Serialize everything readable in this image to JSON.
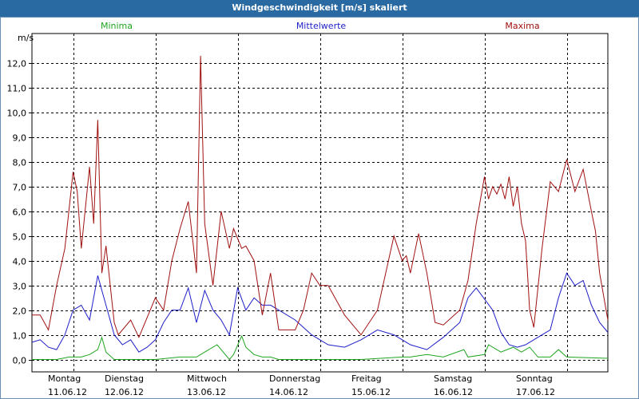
{
  "window": {
    "title": "Windgeschwindigkeit [m/s] skaliert"
  },
  "chart_data": {
    "type": "line",
    "title": "Windgeschwindigkeit [m/s] skaliert",
    "ylabel": "m/s",
    "xlabel": "",
    "ylim": [
      -0.5,
      13.2
    ],
    "yticks": [
      0,
      1,
      2,
      3,
      4,
      5,
      6,
      7,
      8,
      9,
      10,
      11,
      12
    ],
    "ytick_labels": [
      "0,0",
      "1,0",
      "2,0",
      "3,0",
      "4,0",
      "5,0",
      "6,0",
      "7,0",
      "8,0",
      "9,0",
      "10,0",
      "11,0",
      "12,0"
    ],
    "grid": true,
    "xlim": [
      0,
      7
    ],
    "days": [
      {
        "weekday": "Montag",
        "date": "11.06.12"
      },
      {
        "weekday": "Dienstag",
        "date": "12.06.12"
      },
      {
        "weekday": "Mittwoch",
        "date": "13.06.12"
      },
      {
        "weekday": "Donnerstag",
        "date": "14.06.12"
      },
      {
        "weekday": "Freitag",
        "date": "15.06.12"
      },
      {
        "weekday": "Samstag",
        "date": "16.06.12"
      },
      {
        "weekday": "Sonntag",
        "date": "17.06.12"
      }
    ],
    "series": [
      {
        "name": "Minima",
        "color": "#1fa51f",
        "x": [
          0,
          0.3,
          0.45,
          0.6,
          0.7,
          0.8,
          0.85,
          0.9,
          1.0,
          1.5,
          1.8,
          2.0,
          2.1,
          2.25,
          2.4,
          2.45,
          2.55,
          2.6,
          2.7,
          2.8,
          2.9,
          3.0,
          3.5,
          4.0,
          4.5,
          4.6,
          4.8,
          5.0,
          5.25,
          5.3,
          5.5,
          5.55,
          5.7,
          5.85,
          5.95,
          6.05,
          6.15,
          6.3,
          6.4,
          6.5,
          7.0
        ],
        "values": [
          0,
          0,
          0.1,
          0.1,
          0.2,
          0.4,
          0.9,
          0.3,
          0,
          0,
          0.1,
          0.1,
          0.3,
          0.6,
          0,
          0.2,
          0.95,
          0.5,
          0.2,
          0.1,
          0.1,
          0,
          0,
          0,
          0.1,
          0.1,
          0.2,
          0.1,
          0.4,
          0.1,
          0.2,
          0.6,
          0.3,
          0.5,
          0.3,
          0.5,
          0.1,
          0.1,
          0.4,
          0.1,
          0.05
        ]
      },
      {
        "name": "Mittelwerte",
        "color": "#1e1ec8",
        "x": [
          0,
          0.1,
          0.2,
          0.3,
          0.4,
          0.5,
          0.6,
          0.7,
          0.8,
          0.85,
          0.9,
          1.0,
          1.1,
          1.2,
          1.3,
          1.4,
          1.5,
          1.6,
          1.7,
          1.8,
          1.9,
          2.0,
          2.1,
          2.2,
          2.3,
          2.4,
          2.5,
          2.6,
          2.7,
          2.8,
          2.9,
          3.0,
          3.2,
          3.4,
          3.5,
          3.6,
          3.8,
          4.0,
          4.2,
          4.4,
          4.6,
          4.8,
          5.0,
          5.2,
          5.3,
          5.4,
          5.6,
          5.7,
          5.8,
          5.9,
          6.0,
          6.1,
          6.2,
          6.3,
          6.4,
          6.5,
          6.6,
          6.7,
          6.8,
          6.9,
          7.0
        ],
        "values": [
          0.7,
          0.8,
          0.5,
          0.4,
          1.0,
          2.0,
          2.2,
          1.6,
          3.4,
          2.8,
          2.2,
          1.0,
          0.6,
          0.8,
          0.3,
          0.5,
          0.8,
          1.5,
          2.0,
          2.0,
          2.9,
          1.5,
          2.8,
          2.0,
          1.6,
          1.0,
          2.9,
          2.0,
          2.5,
          2.2,
          2.2,
          2.0,
          1.6,
          1.0,
          0.8,
          0.6,
          0.5,
          0.8,
          1.2,
          1.0,
          0.6,
          0.4,
          0.9,
          1.5,
          2.5,
          2.9,
          2.0,
          1.1,
          0.6,
          0.5,
          0.6,
          0.8,
          1.0,
          1.2,
          2.5,
          3.5,
          3.0,
          3.2,
          2.2,
          1.5,
          1.1
        ]
      },
      {
        "name": "Maxima",
        "color": "#a01010",
        "x": [
          0,
          0.1,
          0.2,
          0.3,
          0.4,
          0.5,
          0.55,
          0.6,
          0.7,
          0.75,
          0.8,
          0.85,
          0.9,
          1.0,
          1.05,
          1.2,
          1.3,
          1.5,
          1.6,
          1.7,
          1.8,
          1.9,
          2.0,
          2.05,
          2.1,
          2.2,
          2.3,
          2.4,
          2.45,
          2.55,
          2.6,
          2.7,
          2.8,
          2.9,
          3.0,
          3.2,
          3.3,
          3.4,
          3.5,
          3.6,
          3.8,
          4.0,
          4.2,
          4.3,
          4.4,
          4.5,
          4.55,
          4.6,
          4.7,
          4.8,
          4.9,
          5.0,
          5.2,
          5.3,
          5.4,
          5.5,
          5.55,
          5.6,
          5.65,
          5.7,
          5.75,
          5.8,
          5.85,
          5.9,
          5.95,
          6.0,
          6.05,
          6.1,
          6.2,
          6.3,
          6.4,
          6.5,
          6.6,
          6.7,
          6.8,
          6.85,
          6.9,
          7.0
        ],
        "values": [
          1.8,
          1.8,
          1.2,
          3.0,
          4.5,
          7.6,
          6.8,
          4.5,
          7.8,
          5.5,
          9.7,
          3.5,
          4.6,
          1.5,
          1.0,
          1.6,
          0.9,
          2.5,
          2.0,
          4.0,
          5.3,
          6.4,
          3.5,
          12.3,
          5.5,
          3.0,
          6.0,
          4.5,
          5.3,
          4.5,
          4.6,
          4.0,
          1.8,
          3.5,
          1.2,
          1.2,
          2.0,
          3.5,
          3.0,
          3.0,
          1.8,
          1.0,
          2.0,
          3.5,
          5.0,
          4.0,
          4.2,
          3.5,
          5.1,
          3.5,
          1.5,
          1.4,
          2.0,
          3.2,
          5.5,
          7.4,
          6.5,
          7.0,
          6.7,
          7.1,
          6.5,
          7.4,
          6.2,
          7.0,
          5.5,
          4.8,
          2.0,
          1.3,
          4.5,
          7.2,
          6.8,
          8.1,
          6.8,
          7.7,
          6.0,
          5.2,
          3.5,
          1.6
        ]
      }
    ],
    "legend": {
      "position": "top",
      "entries": [
        "Minima",
        "Mittelwerte",
        "Maxima"
      ]
    }
  }
}
